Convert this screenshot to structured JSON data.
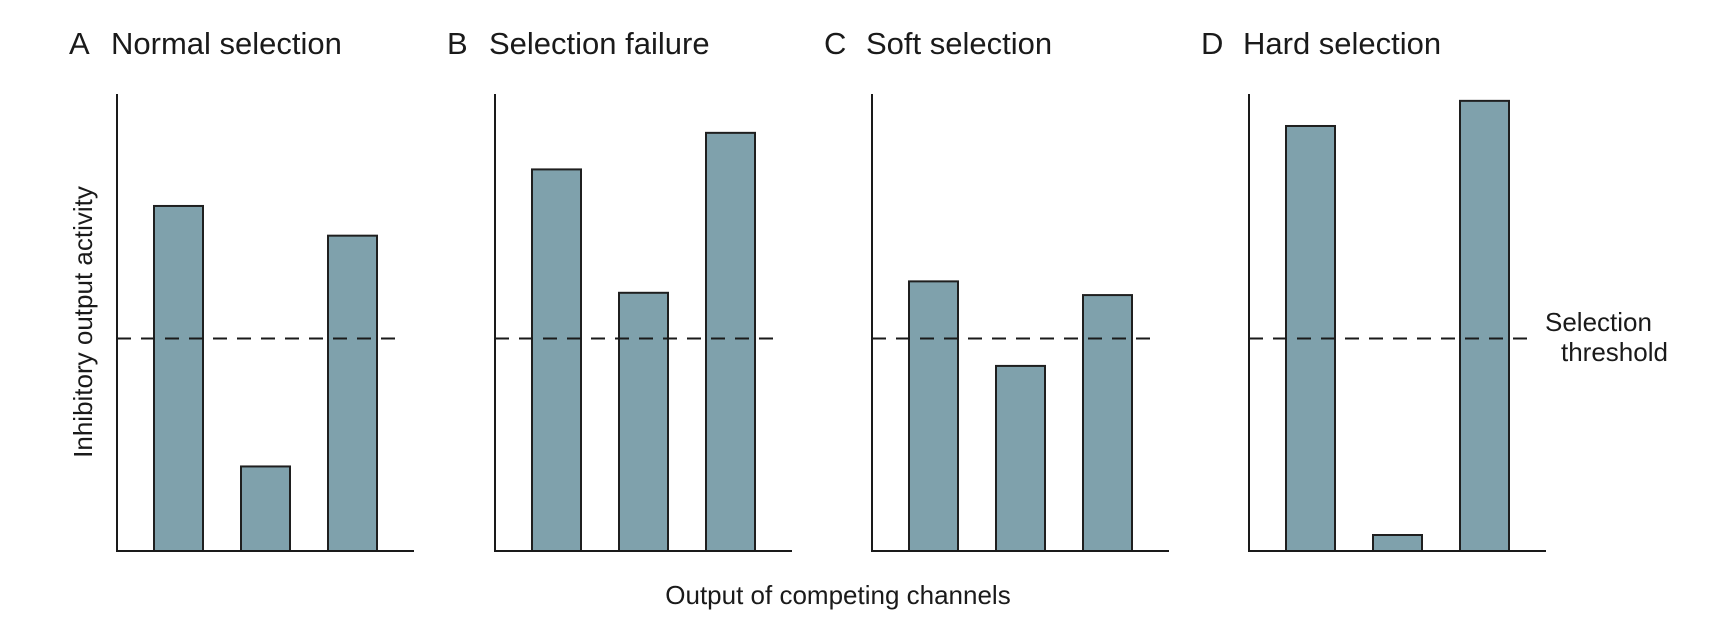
{
  "figure": {
    "ylabel": "Inhibitory output activity",
    "xlabel": "Output of competing channels",
    "threshold_label_line1": "Selection",
    "threshold_label_line2": "threshold",
    "colors": {
      "bar_fill": "#7fa1ac",
      "bar_stroke": "#1f1f1f",
      "axis": "#1a1a1a",
      "threshold_line": "#1a1a1a"
    }
  },
  "chart_data": [
    {
      "type": "bar",
      "panel_letter": "A",
      "title": "Normal selection",
      "categories": [
        "",
        "",
        ""
      ],
      "values": [
        0.755,
        0.185,
        0.69
      ],
      "threshold": 0.465,
      "ylim": [
        0,
        1
      ],
      "grid": false
    },
    {
      "type": "bar",
      "panel_letter": "B",
      "title": "Selection failure",
      "categories": [
        "",
        "",
        ""
      ],
      "values": [
        0.835,
        0.565,
        0.915
      ],
      "threshold": 0.465,
      "ylim": [
        0,
        1
      ],
      "grid": false
    },
    {
      "type": "bar",
      "panel_letter": "C",
      "title": "Soft selection",
      "categories": [
        "",
        "",
        ""
      ],
      "values": [
        0.59,
        0.405,
        0.56
      ],
      "threshold": 0.465,
      "ylim": [
        0,
        1
      ],
      "grid": false
    },
    {
      "type": "bar",
      "panel_letter": "D",
      "title": "Hard selection",
      "categories": [
        "",
        "",
        ""
      ],
      "values": [
        0.93,
        0.035,
        0.985
      ],
      "threshold": 0.465,
      "ylim": [
        0,
        1
      ],
      "grid": false
    }
  ]
}
